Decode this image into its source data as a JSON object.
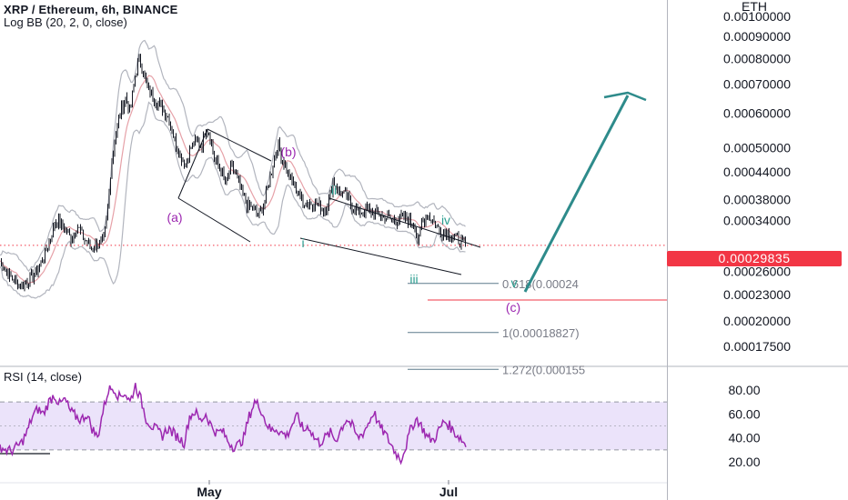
{
  "header": {
    "symbol_line": "XRP / Ethereum, 6h, BINANCE",
    "indicator": "Log BB (20, 2, 0, close)",
    "rsi_indicator": "RSI (14, close)"
  },
  "price_axis": {
    "currency": "ETH",
    "current_price": "0.00029835"
  },
  "colors": {
    "candle": "#131722",
    "bb_band": "#b2b5be",
    "bb_basis": "#e6a1a8",
    "channel": "#131722",
    "wave_abc": "#9c27b0",
    "wave_impulse": "#2a9d8f",
    "projection": "#2e8b8b",
    "fib_line": "#5d7a8c",
    "fib_c_line": "#f23645",
    "price_tag": "#f23645",
    "rsi_line": "#9c27b0",
    "rsi_band": "#ebe3fa"
  },
  "chart_data": [
    {
      "type": "candlestick",
      "title": "XRP / Ethereum, 6h, BINANCE",
      "scale": "log",
      "x_tick_labels": [
        "May",
        "Jul"
      ],
      "y_tick_labels": [
        "0.00100000",
        "0.00090000",
        "0.00080000",
        "0.00070000",
        "0.00060000",
        "0.00050000",
        "0.00044000",
        "0.00038000",
        "0.00034000",
        "0.00026000",
        "0.00023000",
        "0.00020000",
        "0.00017500"
      ],
      "ylim": [
        0.000152,
        0.00102
      ],
      "close_path": [
        [
          0,
          0.000275
        ],
        [
          10,
          0.000255
        ],
        [
          22,
          0.000242
        ],
        [
          32,
          0.000248
        ],
        [
          40,
          0.00026
        ],
        [
          48,
          0.00028
        ],
        [
          55,
          0.00031
        ],
        [
          62,
          0.00034
        ],
        [
          70,
          0.00033
        ],
        [
          78,
          0.00031
        ],
        [
          85,
          0.00033
        ],
        [
          92,
          0.00031
        ],
        [
          100,
          0.000295
        ],
        [
          108,
          0.0003
        ],
        [
          114,
          0.000305
        ],
        [
          118,
          0.00035
        ],
        [
          122,
          0.00045
        ],
        [
          126,
          0.00052
        ],
        [
          132,
          0.0006
        ],
        [
          138,
          0.00065
        ],
        [
          143,
          0.0006
        ],
        [
          148,
          0.00072
        ],
        [
          153,
          0.0008
        ],
        [
          157,
          0.00076
        ],
        [
          162,
          0.00068
        ],
        [
          168,
          0.00066
        ],
        [
          174,
          0.00063
        ],
        [
          180,
          0.00061
        ],
        [
          186,
          0.00058
        ],
        [
          192,
          0.00052
        ],
        [
          198,
          0.00048
        ],
        [
          204,
          0.00046
        ],
        [
          210,
          0.0005
        ],
        [
          216,
          0.00052
        ],
        [
          222,
          0.0005
        ],
        [
          226,
          0.00056
        ],
        [
          230,
          0.00054
        ],
        [
          236,
          0.00047
        ],
        [
          242,
          0.00045
        ],
        [
          248,
          0.00041
        ],
        [
          254,
          0.00045
        ],
        [
          260,
          0.00043
        ],
        [
          266,
          0.00039
        ],
        [
          272,
          0.00037
        ],
        [
          278,
          0.00036
        ],
        [
          284,
          0.00035
        ],
        [
          290,
          0.00037
        ],
        [
          296,
          0.00042
        ],
        [
          300,
          0.00046
        ],
        [
          305,
          0.00051
        ],
        [
          309,
          0.00048
        ],
        [
          314,
          0.00045
        ],
        [
          320,
          0.00042
        ],
        [
          326,
          0.0004
        ],
        [
          332,
          0.00038
        ],
        [
          338,
          0.00037
        ],
        [
          344,
          0.000375
        ],
        [
          350,
          0.00037
        ],
        [
          356,
          0.00036
        ],
        [
          362,
          0.00038
        ],
        [
          366,
          0.00042
        ],
        [
          372,
          0.0004
        ],
        [
          378,
          0.00039
        ],
        [
          386,
          0.00037
        ],
        [
          394,
          0.000355
        ],
        [
          402,
          0.00036
        ],
        [
          410,
          0.000355
        ],
        [
          418,
          0.00035
        ],
        [
          426,
          0.000345
        ],
        [
          434,
          0.00034
        ],
        [
          442,
          0.000345
        ],
        [
          450,
          0.00034
        ],
        [
          456,
          0.00033
        ],
        [
          460,
          0.0003
        ],
        [
          464,
          0.00034
        ],
        [
          470,
          0.00035
        ],
        [
          476,
          0.00034
        ],
        [
          482,
          0.000325
        ],
        [
          488,
          0.00032
        ],
        [
          494,
          0.000315
        ],
        [
          500,
          0.00031
        ],
        [
          506,
          0.000305
        ],
        [
          512,
          0.000298
        ]
      ],
      "bollinger_bands": {
        "length": 20,
        "mult": 2,
        "offset": 0,
        "source": "close"
      },
      "wave_labels": [
        "(a)",
        "(b)",
        "(c)",
        "i",
        "ii",
        "iii",
        "iv",
        "v"
      ],
      "fibonacci_levels": [
        {
          "label": "0.618(0.00024",
          "value": 0.000244
        },
        {
          "label": "1(0.00018827)",
          "value": 0.00018827
        },
        {
          "label": "1.272(0.000155",
          "value": 0.000155
        }
      ],
      "projection_target": 0.00071,
      "last_price": 0.00029835
    },
    {
      "type": "line",
      "title": "RSI (14, close)",
      "y_tick_labels": [
        "80.00",
        "60.00",
        "40.00",
        "20.00"
      ],
      "ylim": [
        10,
        93
      ],
      "band": [
        30,
        70
      ],
      "values": [
        33,
        30,
        29,
        32,
        36,
        45,
        58,
        64,
        60,
        70,
        76,
        68,
        72,
        62,
        58,
        55,
        60,
        48,
        40,
        62,
        80,
        82,
        74,
        78,
        70,
        84,
        72,
        56,
        50,
        46,
        42,
        48,
        44,
        40,
        36,
        58,
        62,
        54,
        60,
        50,
        44,
        46,
        38,
        33,
        34,
        40,
        58,
        70,
        66,
        54,
        46,
        48,
        44,
        42,
        52,
        58,
        46,
        50,
        40,
        36,
        40,
        44,
        38,
        48,
        56,
        50,
        40,
        44,
        52,
        62,
        50,
        44,
        36,
        28,
        22,
        34,
        50,
        56,
        48,
        40,
        38,
        46,
        54,
        50,
        44,
        40,
        34
      ]
    }
  ]
}
